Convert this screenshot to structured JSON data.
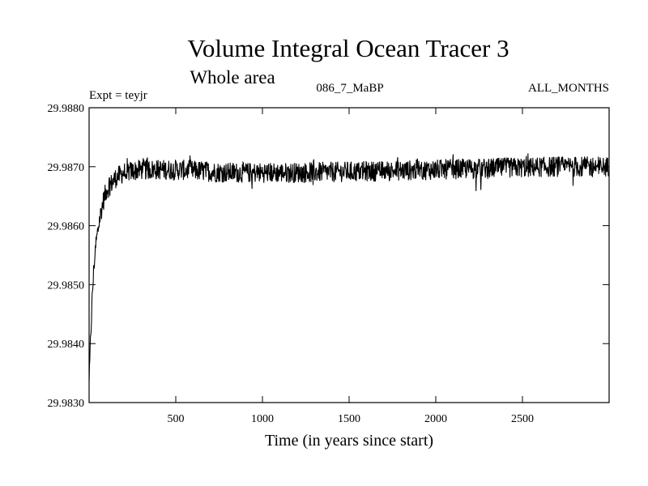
{
  "chart_data": {
    "type": "line",
    "title": "Volume Integral Ocean Tracer 3",
    "subtitle": "Whole area",
    "annotations": {
      "experiment": "Expt = teyjr",
      "run_id": "086_7_MaBP",
      "months": "ALL_MONTHS"
    },
    "xlabel": "Time (in years since start)",
    "ylabel": "",
    "xlim": [
      0,
      3000
    ],
    "ylim": [
      29.983,
      29.988
    ],
    "x_ticks": [
      500,
      1000,
      1500,
      2000,
      2500
    ],
    "x_tick_labels": [
      "500",
      "1000",
      "1500",
      "2000",
      "2500"
    ],
    "y_ticks": [
      29.983,
      29.984,
      29.985,
      29.986,
      29.987,
      29.988
    ],
    "y_tick_labels": [
      "29.9830",
      "29.9840",
      "29.9850",
      "29.9860",
      "29.9870",
      "29.9880"
    ],
    "grid": false,
    "series": [
      {
        "name": "Volume Integral Ocean Tracer 3",
        "description": "approximate trace read from figure",
        "x": [
          0,
          10,
          20,
          30,
          40,
          60,
          80,
          100,
          150,
          200,
          300,
          400,
          500,
          800,
          1200,
          1600,
          2000,
          2400,
          2700,
          3000
        ],
        "values": [
          29.9833,
          29.9842,
          29.9849,
          29.9854,
          29.9857,
          29.9861,
          29.9864,
          29.9866,
          29.9868,
          29.9869,
          29.98695,
          29.98695,
          29.98695,
          29.9869,
          29.9869,
          29.98692,
          29.98695,
          29.98698,
          29.987,
          29.987
        ],
        "noise_amplitude": 0.00035
      }
    ]
  }
}
